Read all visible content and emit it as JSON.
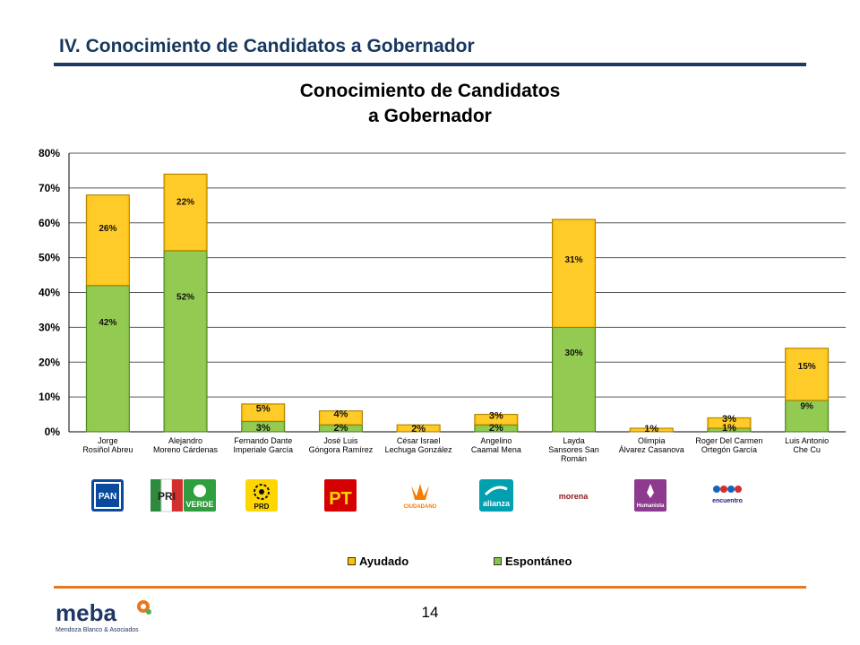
{
  "page": {
    "section_title": "IV. Conocimiento de Candidatos a Gobernador",
    "page_number": "14",
    "colors": {
      "navy": "#1f3864",
      "orange": "#e87722",
      "ayudado": "#ffc000",
      "espontaneo": "#8bc34a"
    }
  },
  "chart_data": {
    "type": "bar",
    "stacked": true,
    "title_line1": "Conocimiento de Candidatos",
    "title_line2": "a Gobernador",
    "ylim": [
      0,
      80
    ],
    "y_ticks": [
      "0%",
      "10%",
      "20%",
      "30%",
      "40%",
      "50%",
      "60%",
      "70%",
      "80%"
    ],
    "grid": true,
    "legend_position": "bottom",
    "categories": [
      [
        "Jorge",
        "Rosiñol Abreu"
      ],
      [
        "Alejandro",
        "Moreno Cárdenas"
      ],
      [
        "Fernando Dante",
        "Imperiale García"
      ],
      [
        "José Luis",
        "Góngora Ramírez"
      ],
      [
        "César Israel",
        "Lechuga González"
      ],
      [
        "Angelino",
        "Caamal Mena"
      ],
      [
        "Layda",
        "Sansores San",
        "Román"
      ],
      [
        "Olimpia",
        "Álvarez Casanova"
      ],
      [
        "Roger Del Carmen",
        "Ortegón García"
      ],
      [
        "Luis Antonio",
        "Che Cu"
      ]
    ],
    "series": [
      {
        "name": "Espontáneo",
        "color": "#8bc34a",
        "values": [
          42,
          52,
          3,
          2,
          0,
          2,
          30,
          0,
          1,
          9
        ],
        "labels": [
          "42%",
          "52%",
          "3%",
          "2%",
          "",
          "2%",
          "30%",
          "",
          "1%",
          "9%"
        ]
      },
      {
        "name": "Ayudado",
        "color": "#ffc000",
        "values": [
          26,
          22,
          5,
          4,
          2,
          3,
          31,
          1,
          3,
          15
        ],
        "labels": [
          "26%",
          "22%",
          "5%",
          "4%",
          "2%",
          "3%",
          "31%",
          "1%",
          "3%",
          "15%"
        ]
      }
    ],
    "legend": [
      {
        "name": "Ayudado",
        "color": "#ffc000"
      },
      {
        "name": "Espontáneo",
        "color": "#8bc34a"
      }
    ]
  },
  "party_logos": [
    {
      "name": "PAN",
      "text": "PAN"
    },
    {
      "name": "PRI",
      "text": "PRI"
    },
    {
      "name": "VERDE",
      "text": "VERDE"
    },
    {
      "name": "PRD",
      "text": "PRD"
    },
    {
      "name": "PT",
      "text": "PT"
    },
    {
      "name": "Movimiento Ciudadano",
      "text": "CIUDADANO"
    },
    {
      "name": "Nueva Alianza",
      "text": "alianza"
    },
    {
      "name": "Morena",
      "text": "morena"
    },
    {
      "name": "Humanista",
      "text": "Humanista"
    },
    {
      "name": "Encuentro Social",
      "text": "encuentro"
    }
  ],
  "logo": {
    "brand": "meba",
    "tagline": "Mendoza Blanco & Asociados"
  }
}
